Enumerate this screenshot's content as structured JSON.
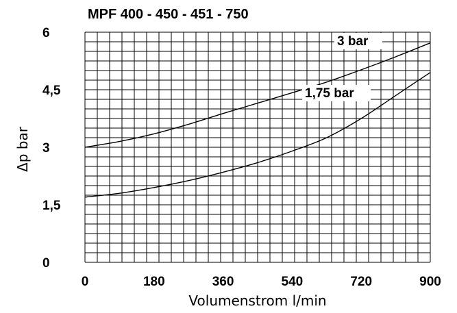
{
  "chart_data": {
    "type": "line",
    "title": "MPF 400 - 450 - 451 - 750",
    "xlabel": "Volumenstrom l/min",
    "ylabel": "Δp bar",
    "xlim": [
      0,
      900
    ],
    "ylim": [
      0,
      6
    ],
    "x_ticks": [
      "0",
      "180",
      "360",
      "540",
      "720",
      "900"
    ],
    "y_ticks": [
      "0",
      "1,5",
      "3",
      "4,5",
      "6"
    ],
    "grid": true,
    "series": [
      {
        "name": "3 bar",
        "x": [
          0,
          90,
          180,
          270,
          360,
          450,
          540,
          630,
          720,
          810,
          900
        ],
        "y": [
          3.0,
          3.15,
          3.35,
          3.6,
          3.88,
          4.15,
          4.42,
          4.7,
          5.02,
          5.36,
          5.72
        ]
      },
      {
        "name": "1,75 bar",
        "x": [
          0,
          90,
          180,
          270,
          360,
          450,
          540,
          630,
          720,
          810,
          900
        ],
        "y": [
          1.7,
          1.8,
          1.95,
          2.13,
          2.35,
          2.6,
          2.9,
          3.25,
          3.75,
          4.35,
          4.95
        ]
      }
    ]
  }
}
